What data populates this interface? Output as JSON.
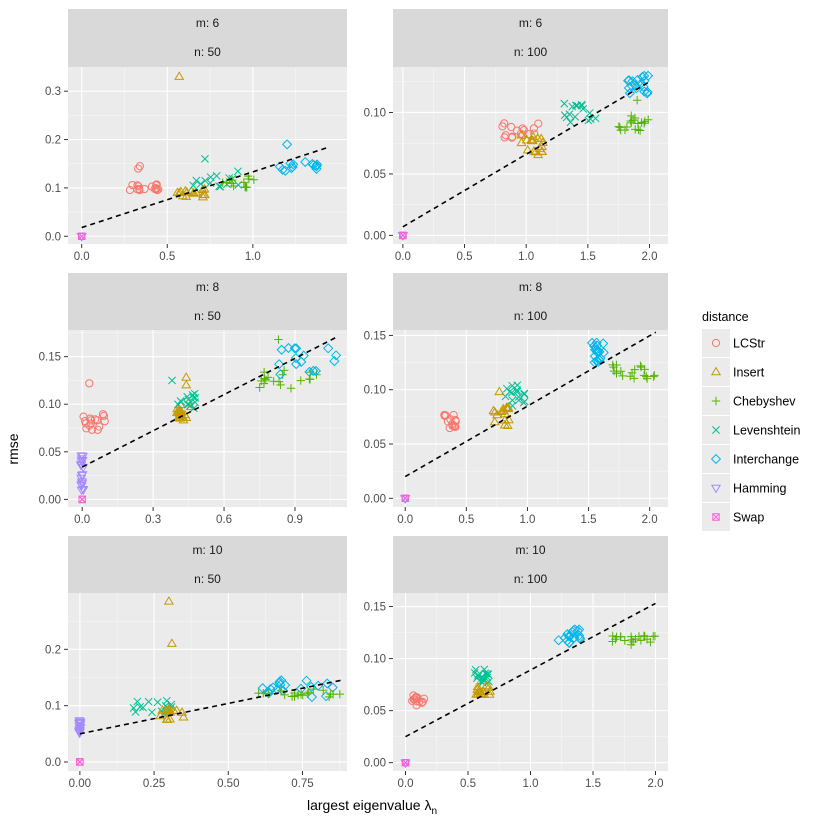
{
  "chart_data": {
    "type": "scatter",
    "xlabel": "largest eigenvalue λ",
    "xlabel_subscript": "n",
    "ylabel": "rmse",
    "legend": {
      "title": "distance",
      "position": "right",
      "entries": [
        {
          "name": "LCStr",
          "color": "#F8766D",
          "shape": "circle"
        },
        {
          "name": "Insert",
          "color": "#C49A00",
          "shape": "triangle-up"
        },
        {
          "name": "Chebyshev",
          "color": "#53B400",
          "shape": "plus"
        },
        {
          "name": "Levenshtein",
          "color": "#00C094",
          "shape": "cross"
        },
        {
          "name": "Interchange",
          "color": "#00B6EB",
          "shape": "diamond"
        },
        {
          "name": "Hamming",
          "color": "#A58AFF",
          "shape": "triangle-down"
        },
        {
          "name": "Swap",
          "color": "#FB61D7",
          "shape": "square-x"
        }
      ]
    },
    "panels": [
      {
        "strip_m": "m: 6",
        "strip_n": "n: 50",
        "xlim": [
          -0.08,
          1.55
        ],
        "ylim": [
          -0.016,
          0.35
        ],
        "xticks": [
          0.0,
          0.5,
          1.0
        ],
        "xtick_labels": [
          "0.0",
          "0.5",
          "1.0"
        ],
        "yticks": [
          0.0,
          0.1,
          0.2,
          0.3
        ],
        "ytick_labels": [
          "0.0",
          "0.1",
          "0.2",
          "0.3"
        ],
        "fit": [
          [
            0.0,
            0.018
          ],
          [
            1.45,
            0.185
          ]
        ],
        "clusters": [
          {
            "series": "LCStr",
            "x": [
              0.28,
              0.45
            ],
            "y": [
              0.095,
              0.108
            ],
            "n": 16,
            "extra": [
              [
                0.33,
                0.14
              ],
              [
                0.34,
                0.145
              ]
            ]
          },
          {
            "series": "Insert",
            "x": [
              0.55,
              0.72
            ],
            "y": [
              0.08,
              0.098
            ],
            "n": 16,
            "extra": [
              [
                0.57,
                0.33
              ]
            ]
          },
          {
            "series": "Levenshtein",
            "x": [
              0.62,
              0.95
            ],
            "y": [
              0.1,
              0.135
            ],
            "n": 14,
            "extra": [
              [
                0.72,
                0.16
              ]
            ]
          },
          {
            "series": "Chebyshev",
            "x": [
              0.82,
              1.02
            ],
            "y": [
              0.1,
              0.125
            ],
            "n": 12,
            "extra": []
          },
          {
            "series": "Interchange",
            "x": [
              1.15,
              1.4
            ],
            "y": [
              0.135,
              0.155
            ],
            "n": 14,
            "extra": [
              [
                1.2,
                0.19
              ]
            ]
          },
          {
            "series": "Hamming",
            "x": [
              0.0,
              0.0
            ],
            "y": [
              0.0,
              0.0
            ],
            "n": 3,
            "extra": []
          },
          {
            "series": "Swap",
            "x": [
              0.0,
              0.0
            ],
            "y": [
              0.0,
              0.0
            ],
            "n": 3,
            "extra": []
          }
        ]
      },
      {
        "strip_m": "m: 6",
        "strip_n": "n: 100",
        "xlim": [
          -0.08,
          2.15
        ],
        "ylim": [
          -0.007,
          0.137
        ],
        "xticks": [
          0.0,
          0.5,
          1.0,
          1.5,
          2.0
        ],
        "xtick_labels": [
          "0.0",
          "0.5",
          "1.0",
          "1.5",
          "2.0"
        ],
        "yticks": [
          0.0,
          0.05,
          0.1
        ],
        "ytick_labels": [
          "0.00",
          "0.05",
          "0.10"
        ],
        "fit": [
          [
            0.0,
            0.007
          ],
          [
            2.0,
            0.125
          ]
        ],
        "clusters": [
          {
            "series": "LCStr",
            "x": [
              0.8,
              1.1
            ],
            "y": [
              0.078,
              0.092
            ],
            "n": 16,
            "extra": []
          },
          {
            "series": "Insert",
            "x": [
              0.95,
              1.15
            ],
            "y": [
              0.065,
              0.082
            ],
            "n": 18,
            "extra": []
          },
          {
            "series": "Levenshtein",
            "x": [
              1.3,
              1.6
            ],
            "y": [
              0.092,
              0.108
            ],
            "n": 16,
            "extra": []
          },
          {
            "series": "Chebyshev",
            "x": [
              1.75,
              2.0
            ],
            "y": [
              0.085,
              0.1
            ],
            "n": 18,
            "extra": [
              [
                1.9,
                0.11
              ]
            ]
          },
          {
            "series": "Interchange",
            "x": [
              1.82,
              2.0
            ],
            "y": [
              0.115,
              0.13
            ],
            "n": 18,
            "extra": []
          },
          {
            "series": "Hamming",
            "x": [
              0.0,
              0.0
            ],
            "y": [
              0.0,
              0.0
            ],
            "n": 3,
            "extra": []
          },
          {
            "series": "Swap",
            "x": [
              0.0,
              0.0
            ],
            "y": [
              0.0,
              0.0
            ],
            "n": 3,
            "extra": []
          }
        ]
      },
      {
        "strip_m": "m: 8",
        "strip_n": "n: 50",
        "xlim": [
          -0.06,
          1.12
        ],
        "ylim": [
          -0.008,
          0.178
        ],
        "xticks": [
          0.0,
          0.3,
          0.6,
          0.9
        ],
        "xtick_labels": [
          "0.0",
          "0.3",
          "0.6",
          "0.9"
        ],
        "yticks": [
          0.0,
          0.05,
          0.1,
          0.15
        ],
        "ytick_labels": [
          "0.00",
          "0.05",
          "0.10",
          "0.15"
        ],
        "fit": [
          [
            0.0,
            0.034
          ],
          [
            1.08,
            0.171
          ]
        ],
        "clusters": [
          {
            "series": "LCStr",
            "x": [
              0.0,
              0.1
            ],
            "y": [
              0.072,
              0.09
            ],
            "n": 16,
            "extra": [
              [
                0.03,
                0.122
              ]
            ]
          },
          {
            "series": "Insert",
            "x": [
              0.4,
              0.46
            ],
            "y": [
              0.08,
              0.1
            ],
            "n": 16,
            "extra": [
              [
                0.44,
                0.128
              ],
              [
                0.44,
                0.12
              ]
            ]
          },
          {
            "series": "Levenshtein",
            "x": [
              0.38,
              0.48
            ],
            "y": [
              0.095,
              0.115
            ],
            "n": 14,
            "extra": [
              [
                0.38,
                0.125
              ]
            ]
          },
          {
            "series": "Chebyshev",
            "x": [
              0.75,
              1.0
            ],
            "y": [
              0.115,
              0.14
            ],
            "n": 18,
            "extra": [
              [
                0.83,
                0.168
              ]
            ]
          },
          {
            "series": "Interchange",
            "x": [
              0.82,
              1.08
            ],
            "y": [
              0.13,
              0.16
            ],
            "n": 16,
            "extra": []
          },
          {
            "series": "Hamming",
            "x": [
              -0.005,
              0.005
            ],
            "y": [
              0.0,
              0.05
            ],
            "n": 18,
            "extra": []
          },
          {
            "series": "Swap",
            "x": [
              0.0,
              0.0
            ],
            "y": [
              0.0,
              0.0
            ],
            "n": 3,
            "extra": []
          }
        ]
      },
      {
        "strip_m": "m: 8",
        "strip_n": "n: 100",
        "xlim": [
          -0.1,
          2.15
        ],
        "ylim": [
          -0.008,
          0.155
        ],
        "xticks": [
          0.0,
          0.5,
          1.0,
          1.5,
          2.0
        ],
        "xtick_labels": [
          "0.0",
          "0.5",
          "1.0",
          "1.5",
          "2.0"
        ],
        "yticks": [
          0.0,
          0.05,
          0.1,
          0.15
        ],
        "ytick_labels": [
          "0.00",
          "0.05",
          "0.10",
          "0.15"
        ],
        "fit": [
          [
            0.0,
            0.02
          ],
          [
            2.05,
            0.153
          ]
        ],
        "clusters": [
          {
            "series": "LCStr",
            "x": [
              0.3,
              0.42
            ],
            "y": [
              0.062,
              0.078
            ],
            "n": 14,
            "extra": []
          },
          {
            "series": "Insert",
            "x": [
              0.72,
              0.85
            ],
            "y": [
              0.065,
              0.085
            ],
            "n": 16,
            "extra": [
              [
                0.77,
                0.098
              ]
            ]
          },
          {
            "series": "Levenshtein",
            "x": [
              0.82,
              0.98
            ],
            "y": [
              0.085,
              0.105
            ],
            "n": 16,
            "extra": []
          },
          {
            "series": "Interchange",
            "x": [
              1.52,
              1.65
            ],
            "y": [
              0.125,
              0.145
            ],
            "n": 18,
            "extra": []
          },
          {
            "series": "Chebyshev",
            "x": [
              1.65,
              2.05
            ],
            "y": [
              0.11,
              0.125
            ],
            "n": 20,
            "extra": []
          },
          {
            "series": "Hamming",
            "x": [
              0.0,
              0.0
            ],
            "y": [
              0.0,
              0.0
            ],
            "n": 3,
            "extra": []
          },
          {
            "series": "Swap",
            "x": [
              0.0,
              0.0
            ],
            "y": [
              0.0,
              0.0
            ],
            "n": 3,
            "extra": []
          }
        ]
      },
      {
        "strip_m": "m: 10",
        "strip_n": "n: 50",
        "xlim": [
          -0.04,
          0.9
        ],
        "ylim": [
          -0.016,
          0.3
        ],
        "xticks": [
          0.0,
          0.25,
          0.5,
          0.75
        ],
        "xtick_labels": [
          "0.00",
          "0.25",
          "0.50",
          "0.75"
        ],
        "yticks": [
          0.0,
          0.1,
          0.2
        ],
        "ytick_labels": [
          "0.0",
          "0.1",
          "0.2"
        ],
        "fit": [
          [
            0.0,
            0.05
          ],
          [
            0.88,
            0.145
          ]
        ],
        "clusters": [
          {
            "series": "Levenshtein",
            "x": [
              0.18,
              0.32
            ],
            "y": [
              0.085,
              0.11
            ],
            "n": 16,
            "extra": []
          },
          {
            "series": "Insert",
            "x": [
              0.25,
              0.36
            ],
            "y": [
              0.075,
              0.095
            ],
            "n": 14,
            "extra": [
              [
                0.3,
                0.285
              ],
              [
                0.31,
                0.21
              ]
            ]
          },
          {
            "series": "Interchange",
            "x": [
              0.58,
              0.86
            ],
            "y": [
              0.115,
              0.145
            ],
            "n": 20,
            "extra": []
          },
          {
            "series": "Chebyshev",
            "x": [
              0.6,
              0.88
            ],
            "y": [
              0.115,
              0.13
            ],
            "n": 20,
            "extra": []
          },
          {
            "series": "Hamming",
            "x": [
              -0.003,
              0.003
            ],
            "y": [
              0.05,
              0.075
            ],
            "n": 16,
            "extra": []
          },
          {
            "series": "Swap",
            "x": [
              0.0,
              0.0
            ],
            "y": [
              0.0,
              0.0
            ],
            "n": 3,
            "extra": []
          }
        ]
      },
      {
        "strip_m": "m: 10",
        "strip_n": "n: 100",
        "xlim": [
          -0.1,
          2.1
        ],
        "ylim": [
          -0.008,
          0.163
        ],
        "xticks": [
          0.0,
          0.5,
          1.0,
          1.5,
          2.0
        ],
        "xtick_labels": [
          "0.0",
          "0.5",
          "1.0",
          "1.5",
          "2.0"
        ],
        "yticks": [
          0.0,
          0.05,
          0.1,
          0.15
        ],
        "ytick_labels": [
          "0.00",
          "0.05",
          "0.10",
          "0.15"
        ],
        "fit": [
          [
            0.0,
            0.025
          ],
          [
            2.0,
            0.153
          ]
        ],
        "clusters": [
          {
            "series": "LCStr",
            "x": [
              0.05,
              0.15
            ],
            "y": [
              0.055,
              0.065
            ],
            "n": 14,
            "extra": []
          },
          {
            "series": "Levenshtein",
            "x": [
              0.55,
              0.68
            ],
            "y": [
              0.075,
              0.09
            ],
            "n": 16,
            "extra": []
          },
          {
            "series": "Insert",
            "x": [
              0.55,
              0.68
            ],
            "y": [
              0.065,
              0.075
            ],
            "n": 16,
            "extra": []
          },
          {
            "series": "Interchange",
            "x": [
              1.22,
              1.4
            ],
            "y": [
              0.115,
              0.128
            ],
            "n": 18,
            "extra": []
          },
          {
            "series": "Chebyshev",
            "x": [
              1.65,
              2.02
            ],
            "y": [
              0.113,
              0.122
            ],
            "n": 20,
            "extra": []
          },
          {
            "series": "Hamming",
            "x": [
              0.0,
              0.0
            ],
            "y": [
              0.0,
              0.0
            ],
            "n": 3,
            "extra": []
          },
          {
            "series": "Swap",
            "x": [
              0.0,
              0.0
            ],
            "y": [
              0.0,
              0.0
            ],
            "n": 3,
            "extra": []
          }
        ]
      }
    ]
  }
}
